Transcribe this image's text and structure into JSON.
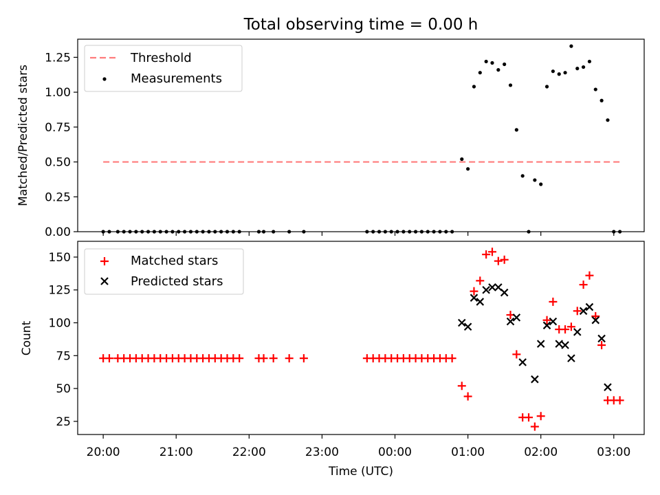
{
  "figure_title": "Total observing time = 0.00 h",
  "xlabel": "Time (UTC)",
  "chart_data": [
    {
      "type": "scatter",
      "title": "Total observing time = 0.00 h",
      "xlabel": "Time (UTC)",
      "ylabel": "Matched/Predicted stars",
      "xlim": [
        "19:39",
        "03:25"
      ],
      "ylim": [
        0,
        1.38
      ],
      "x_ticks": [
        "20:00",
        "21:00",
        "22:00",
        "23:00",
        "00:00",
        "01:00",
        "02:00",
        "03:00"
      ],
      "y_ticks": [
        "0.00",
        "0.25",
        "0.50",
        "0.75",
        "1.00",
        "1.25"
      ],
      "legend_position": "top-left",
      "series": [
        {
          "name": "Threshold",
          "kind": "line",
          "style": "dashed",
          "color": "#ff7b7b",
          "points": [
            [
              "20:00",
              0.5
            ],
            [
              "03:05",
              0.5
            ]
          ]
        },
        {
          "name": "Measurements",
          "kind": "scatter",
          "marker": "dot",
          "color": "#000000",
          "points": [
            [
              "20:00",
              0
            ],
            [
              "20:05",
              0
            ],
            [
              "20:12",
              0
            ],
            [
              "20:17",
              0
            ],
            [
              "20:22",
              0
            ],
            [
              "20:27",
              0
            ],
            [
              "20:32",
              0
            ],
            [
              "20:37",
              0
            ],
            [
              "20:42",
              0
            ],
            [
              "20:47",
              0
            ],
            [
              "20:52",
              0
            ],
            [
              "20:57",
              0
            ],
            [
              "21:02",
              0
            ],
            [
              "21:07",
              0
            ],
            [
              "21:12",
              0
            ],
            [
              "21:17",
              0
            ],
            [
              "21:22",
              0
            ],
            [
              "21:27",
              0
            ],
            [
              "21:32",
              0
            ],
            [
              "21:37",
              0
            ],
            [
              "21:42",
              0
            ],
            [
              "21:47",
              0
            ],
            [
              "21:52",
              0
            ],
            [
              "22:08",
              0
            ],
            [
              "22:12",
              0
            ],
            [
              "22:20",
              0
            ],
            [
              "22:33",
              0
            ],
            [
              "22:45",
              0
            ],
            [
              "23:37",
              0
            ],
            [
              "23:42",
              0
            ],
            [
              "23:47",
              0
            ],
            [
              "23:52",
              0
            ],
            [
              "23:57",
              0
            ],
            [
              "00:02",
              0
            ],
            [
              "00:07",
              0
            ],
            [
              "00:12",
              0
            ],
            [
              "00:17",
              0
            ],
            [
              "00:22",
              0
            ],
            [
              "00:27",
              0
            ],
            [
              "00:32",
              0
            ],
            [
              "00:37",
              0
            ],
            [
              "00:42",
              0
            ],
            [
              "00:47",
              0
            ],
            [
              "00:55",
              0.52
            ],
            [
              "01:00",
              0.45
            ],
            [
              "01:05",
              1.04
            ],
            [
              "01:10",
              1.14
            ],
            [
              "01:15",
              1.22
            ],
            [
              "01:20",
              1.21
            ],
            [
              "01:25",
              1.16
            ],
            [
              "01:30",
              1.2
            ],
            [
              "01:35",
              1.05
            ],
            [
              "01:40",
              0.73
            ],
            [
              "01:45",
              0.4
            ],
            [
              "01:50",
              0
            ],
            [
              "01:55",
              0.37
            ],
            [
              "02:00",
              0.34
            ],
            [
              "02:05",
              1.04
            ],
            [
              "02:10",
              1.15
            ],
            [
              "02:15",
              1.13
            ],
            [
              "02:20",
              1.14
            ],
            [
              "02:25",
              1.33
            ],
            [
              "02:30",
              1.17
            ],
            [
              "02:35",
              1.18
            ],
            [
              "02:40",
              1.22
            ],
            [
              "02:45",
              1.02
            ],
            [
              "02:50",
              0.94
            ],
            [
              "02:55",
              0.8
            ],
            [
              "03:00",
              0
            ],
            [
              "03:05",
              0
            ]
          ]
        }
      ]
    },
    {
      "type": "scatter",
      "xlabel": "Time (UTC)",
      "ylabel": "Count",
      "xlim": [
        "19:39",
        "03:25"
      ],
      "ylim": [
        15,
        162
      ],
      "x_ticks": [
        "20:00",
        "21:00",
        "22:00",
        "23:00",
        "00:00",
        "01:00",
        "02:00",
        "03:00"
      ],
      "y_ticks": [
        "25",
        "50",
        "75",
        "100",
        "125",
        "150"
      ],
      "legend_position": "top-left",
      "series": [
        {
          "name": "Matched stars",
          "kind": "scatter",
          "marker": "plus",
          "color": "#ff0000",
          "points": [
            [
              "20:00",
              73
            ],
            [
              "20:05",
              73
            ],
            [
              "20:12",
              73
            ],
            [
              "20:17",
              73
            ],
            [
              "20:22",
              73
            ],
            [
              "20:27",
              73
            ],
            [
              "20:32",
              73
            ],
            [
              "20:37",
              73
            ],
            [
              "20:42",
              73
            ],
            [
              "20:47",
              73
            ],
            [
              "20:52",
              73
            ],
            [
              "20:57",
              73
            ],
            [
              "21:02",
              73
            ],
            [
              "21:07",
              73
            ],
            [
              "21:12",
              73
            ],
            [
              "21:17",
              73
            ],
            [
              "21:22",
              73
            ],
            [
              "21:27",
              73
            ],
            [
              "21:32",
              73
            ],
            [
              "21:37",
              73
            ],
            [
              "21:42",
              73
            ],
            [
              "21:47",
              73
            ],
            [
              "21:52",
              73
            ],
            [
              "22:08",
              73
            ],
            [
              "22:12",
              73
            ],
            [
              "22:20",
              73
            ],
            [
              "22:33",
              73
            ],
            [
              "22:45",
              73
            ],
            [
              "23:37",
              73
            ],
            [
              "23:42",
              73
            ],
            [
              "23:47",
              73
            ],
            [
              "23:52",
              73
            ],
            [
              "23:57",
              73
            ],
            [
              "00:02",
              73
            ],
            [
              "00:07",
              73
            ],
            [
              "00:12",
              73
            ],
            [
              "00:17",
              73
            ],
            [
              "00:22",
              73
            ],
            [
              "00:27",
              73
            ],
            [
              "00:32",
              73
            ],
            [
              "00:37",
              73
            ],
            [
              "00:42",
              73
            ],
            [
              "00:47",
              73
            ],
            [
              "00:55",
              52
            ],
            [
              "01:00",
              44
            ],
            [
              "01:05",
              124
            ],
            [
              "01:10",
              132
            ],
            [
              "01:15",
              152
            ],
            [
              "01:20",
              154
            ],
            [
              "01:25",
              147
            ],
            [
              "01:30",
              148
            ],
            [
              "01:35",
              106
            ],
            [
              "01:40",
              76
            ],
            [
              "01:45",
              28
            ],
            [
              "01:50",
              28
            ],
            [
              "01:55",
              21
            ],
            [
              "02:00",
              29
            ],
            [
              "02:05",
              102
            ],
            [
              "02:10",
              116
            ],
            [
              "02:15",
              95
            ],
            [
              "02:20",
              95
            ],
            [
              "02:25",
              97
            ],
            [
              "02:30",
              109
            ],
            [
              "02:35",
              129
            ],
            [
              "02:40",
              136
            ],
            [
              "02:45",
              105
            ],
            [
              "02:50",
              83
            ],
            [
              "02:55",
              41
            ],
            [
              "03:00",
              41
            ],
            [
              "03:05",
              41
            ]
          ]
        },
        {
          "name": "Predicted stars",
          "kind": "scatter",
          "marker": "x",
          "color": "#000000",
          "points": [
            [
              "00:55",
              100
            ],
            [
              "01:00",
              97
            ],
            [
              "01:05",
              119
            ],
            [
              "01:10",
              116
            ],
            [
              "01:15",
              125
            ],
            [
              "01:20",
              127
            ],
            [
              "01:25",
              127
            ],
            [
              "01:30",
              123
            ],
            [
              "01:35",
              101
            ],
            [
              "01:40",
              104
            ],
            [
              "01:45",
              70
            ],
            [
              "01:55",
              57
            ],
            [
              "02:00",
              84
            ],
            [
              "02:05",
              98
            ],
            [
              "02:10",
              101
            ],
            [
              "02:15",
              84
            ],
            [
              "02:20",
              83
            ],
            [
              "02:25",
              73
            ],
            [
              "02:30",
              93
            ],
            [
              "02:35",
              109
            ],
            [
              "02:40",
              112
            ],
            [
              "02:45",
              102
            ],
            [
              "02:50",
              88
            ],
            [
              "02:55",
              51
            ]
          ]
        }
      ]
    }
  ]
}
